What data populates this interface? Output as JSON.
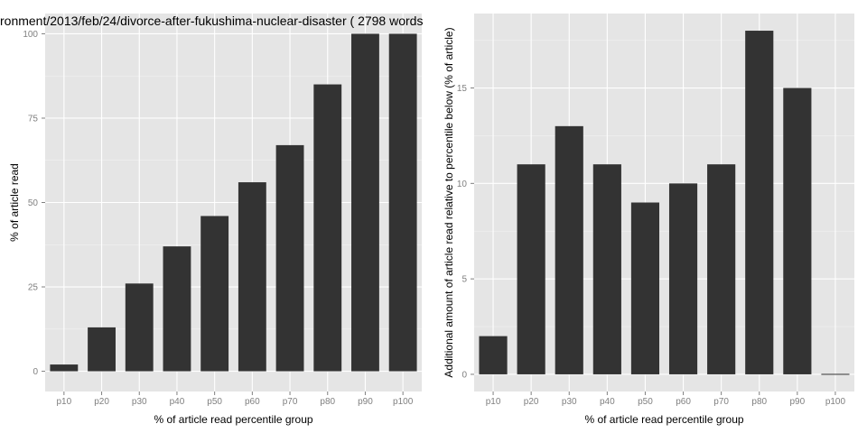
{
  "chart_data": [
    {
      "type": "bar",
      "title": "ronment/2013/feb/24/divorce-after-fukushima-nuclear-disaster ( 2798 words",
      "xlabel": "% of article read percentile group",
      "ylabel": "% of article read",
      "categories": [
        "p10",
        "p20",
        "p30",
        "p40",
        "p50",
        "p60",
        "p70",
        "p80",
        "p90",
        "p100"
      ],
      "values": [
        2,
        13,
        26,
        37,
        46,
        56,
        67,
        85,
        100,
        100
      ],
      "ylim": [
        -6,
        106
      ],
      "yticks": [
        0,
        25,
        50,
        75,
        100
      ],
      "grid": true,
      "colors": {
        "panel": "#e5e5e5",
        "bar": "#333333",
        "grid": "#ffffff"
      }
    },
    {
      "type": "bar",
      "title": "",
      "xlabel": "% of article read percentile group",
      "ylabel": "Additional amount of article read relative to percentile below (% of article)",
      "categories": [
        "p10",
        "p20",
        "p30",
        "p40",
        "p50",
        "p60",
        "p70",
        "p80",
        "p90",
        "p100"
      ],
      "values": [
        2,
        11,
        13,
        11,
        9,
        10,
        11,
        18,
        15,
        0
      ],
      "ylim": [
        -0.9,
        18.9
      ],
      "yticks": [
        0,
        5,
        10,
        15
      ],
      "grid": true,
      "colors": {
        "panel": "#e5e5e5",
        "bar": "#333333",
        "grid": "#ffffff"
      }
    }
  ]
}
